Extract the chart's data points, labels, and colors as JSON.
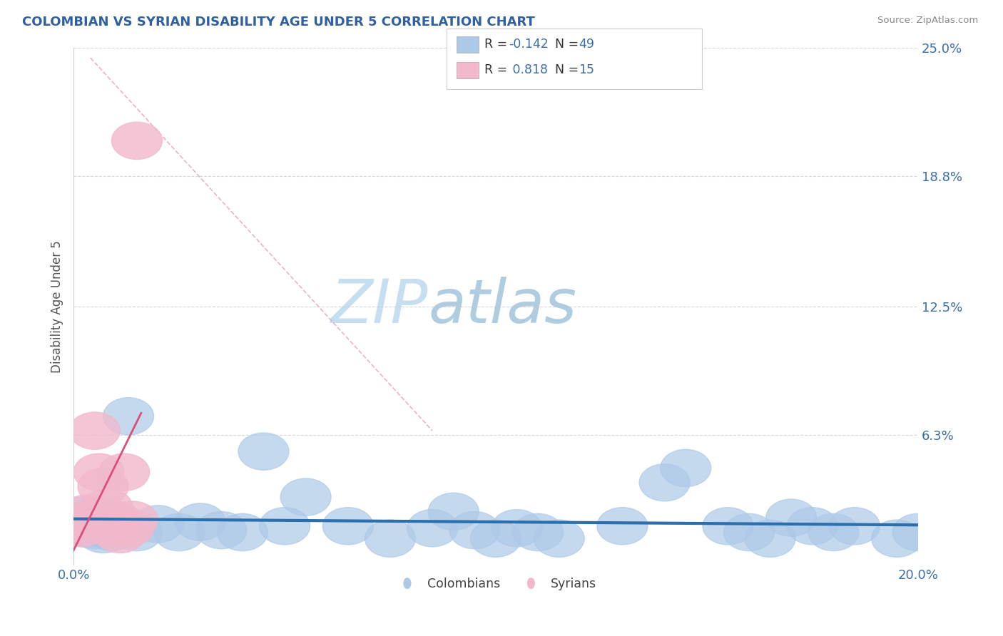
{
  "title": "COLOMBIAN VS SYRIAN DISABILITY AGE UNDER 5 CORRELATION CHART",
  "source": "Source: ZipAtlas.com",
  "ylabel": "Disability Age Under 5",
  "xlim": [
    0.0,
    0.2
  ],
  "ylim": [
    0.0,
    0.25
  ],
  "ytick_vals": [
    0.0,
    0.063,
    0.125,
    0.188,
    0.25
  ],
  "ytick_labels": [
    "",
    "6.3%",
    "12.5%",
    "18.8%",
    "25.0%"
  ],
  "legend_r_colombian": "-0.142",
  "legend_n_colombian": "49",
  "legend_r_syrian": "0.818",
  "legend_n_syrian": "15",
  "colombian_color": "#adc9e8",
  "syrian_color": "#f2b8cb",
  "colombian_line_color": "#2c6fad",
  "syrian_line_color": "#d94f7a",
  "background_color": "#ffffff",
  "grid_color": "#c8c8c8",
  "colombian_x": [
    0.001,
    0.002,
    0.002,
    0.003,
    0.003,
    0.004,
    0.004,
    0.005,
    0.005,
    0.006,
    0.006,
    0.007,
    0.007,
    0.008,
    0.008,
    0.009,
    0.01,
    0.011,
    0.013,
    0.015,
    0.02,
    0.025,
    0.03,
    0.035,
    0.04,
    0.045,
    0.05,
    0.055,
    0.065,
    0.075,
    0.085,
    0.09,
    0.095,
    0.1,
    0.105,
    0.11,
    0.115,
    0.13,
    0.14,
    0.145,
    0.155,
    0.16,
    0.165,
    0.17,
    0.175,
    0.18,
    0.185,
    0.195,
    0.2
  ],
  "colombian_y": [
    0.021,
    0.018,
    0.024,
    0.018,
    0.022,
    0.019,
    0.023,
    0.02,
    0.017,
    0.02,
    0.022,
    0.018,
    0.015,
    0.019,
    0.022,
    0.016,
    0.021,
    0.02,
    0.072,
    0.016,
    0.02,
    0.016,
    0.021,
    0.017,
    0.016,
    0.055,
    0.019,
    0.033,
    0.019,
    0.013,
    0.018,
    0.026,
    0.017,
    0.013,
    0.018,
    0.016,
    0.013,
    0.019,
    0.04,
    0.047,
    0.019,
    0.016,
    0.013,
    0.023,
    0.019,
    0.016,
    0.019,
    0.013,
    0.016
  ],
  "syrian_x": [
    0.001,
    0.002,
    0.003,
    0.004,
    0.005,
    0.006,
    0.007,
    0.008,
    0.009,
    0.01,
    0.011,
    0.012,
    0.013,
    0.014,
    0.015
  ],
  "syrian_y": [
    0.02,
    0.018,
    0.025,
    0.022,
    0.065,
    0.045,
    0.038,
    0.028,
    0.018,
    0.022,
    0.015,
    0.045,
    0.018,
    0.022,
    0.205
  ],
  "dash_line_color": "#e8a0b8",
  "watermark_zip_color": "#c5dff0",
  "watermark_atlas_color": "#b0cce0"
}
